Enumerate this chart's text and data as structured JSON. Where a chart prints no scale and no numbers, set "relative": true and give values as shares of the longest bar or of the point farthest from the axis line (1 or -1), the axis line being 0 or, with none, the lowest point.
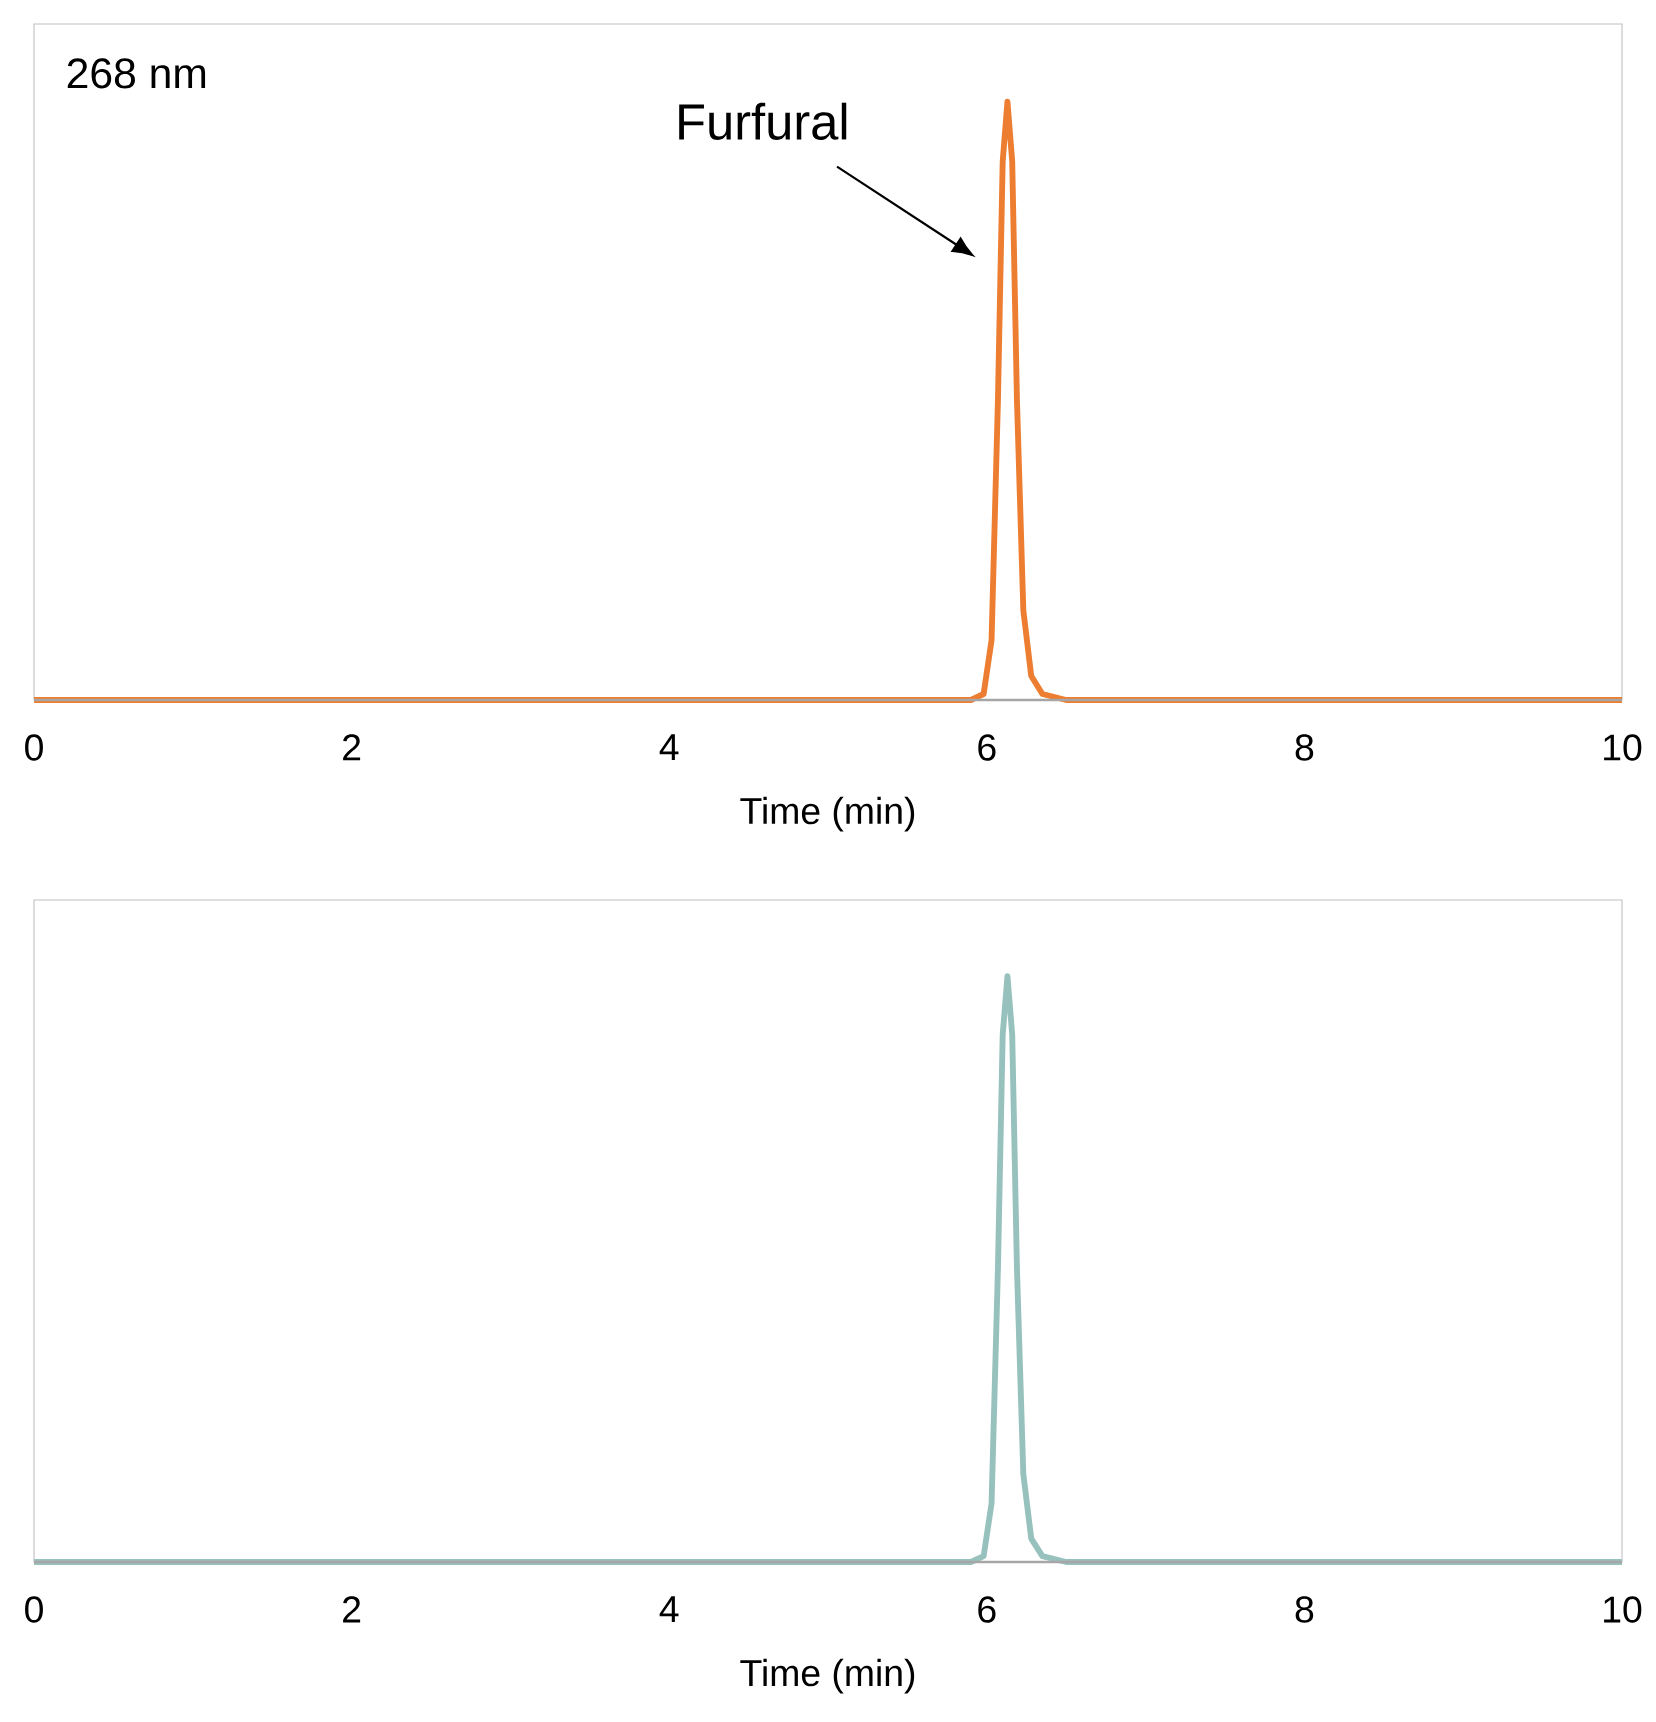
{
  "chart_data": [
    {
      "type": "line",
      "relative": true,
      "xlabel": "Time (min)",
      "xlim": [
        0,
        10
      ],
      "xticks": [
        0,
        2,
        4,
        6,
        8,
        10
      ],
      "annotations": [
        "268 nm",
        "Furfural"
      ],
      "x": [
        0,
        5.9,
        5.98,
        6.03,
        6.07,
        6.1,
        6.13,
        6.16,
        6.19,
        6.23,
        6.28,
        6.35,
        6.5,
        10
      ],
      "series": [
        {
          "color": "#ed7d31",
          "values": [
            0,
            0,
            0.01,
            0.1,
            0.5,
            0.9,
            1,
            0.9,
            0.5,
            0.15,
            0.04,
            0.01,
            0,
            0
          ]
        }
      ]
    },
    {
      "type": "line",
      "relative": true,
      "xlabel": "Time (min)",
      "xlim": [
        0,
        10
      ],
      "xticks": [
        0,
        2,
        4,
        6,
        8,
        10
      ],
      "x": [
        0,
        5.9,
        5.98,
        6.03,
        6.07,
        6.1,
        6.13,
        6.16,
        6.19,
        6.23,
        6.28,
        6.35,
        6.5,
        10
      ],
      "series": [
        {
          "color": "#97c1bd",
          "values": [
            0,
            0,
            0.01,
            0.1,
            0.5,
            0.9,
            1,
            0.9,
            0.5,
            0.15,
            0.04,
            0.01,
            0,
            0
          ]
        }
      ]
    }
  ]
}
